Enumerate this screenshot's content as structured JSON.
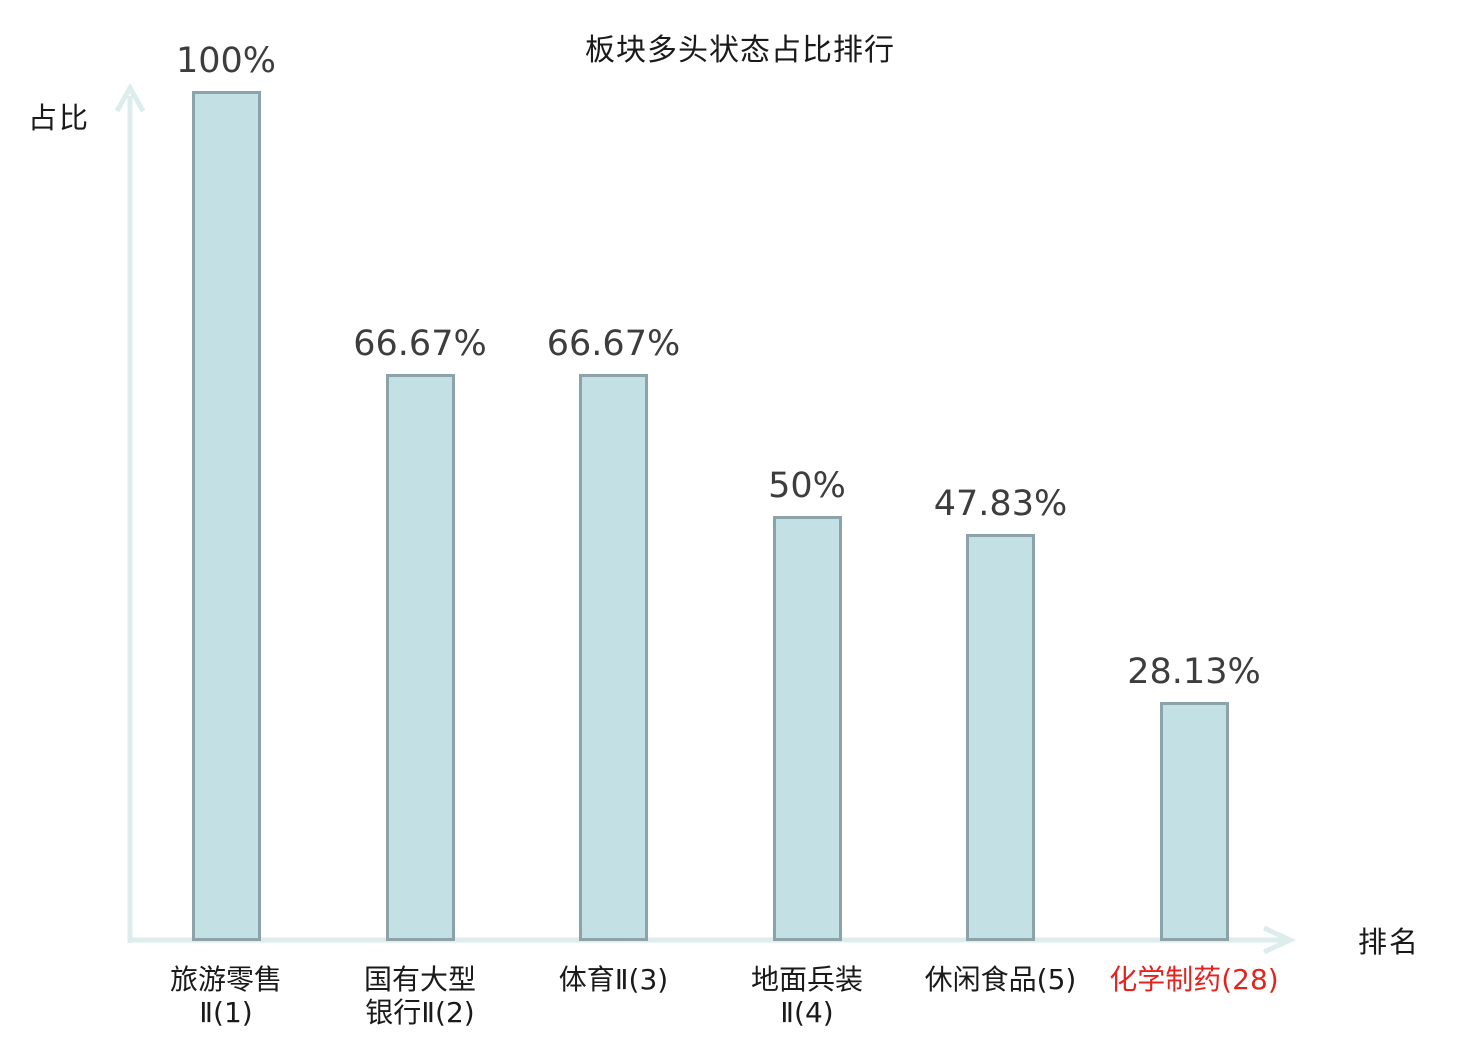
{
  "title": "板块多头状态占比排行",
  "axes": {
    "y_label": "占比",
    "x_label": "排名"
  },
  "colors": {
    "bar_fill": "#c3e0e4",
    "bar_border": "#8ca4a9",
    "axis": "#dcedeb",
    "value_label": "#3d3d3d",
    "text": "#1a1a1a",
    "highlight_red": "#e5231e"
  },
  "chart_data": {
    "type": "bar",
    "title": "板块多头状态占比排行",
    "xlabel": "排名",
    "ylabel": "占比",
    "ylim": [
      0,
      100
    ],
    "grid": false,
    "legend": "none",
    "categories": [
      "旅游零售Ⅱ(1)",
      "国有大型银行Ⅱ(2)",
      "体育Ⅱ(3)",
      "地面兵装Ⅱ(4)",
      "休闲食品(5)",
      "化学制药(28)"
    ],
    "category_display": [
      "旅游零售\nⅡ(1)",
      "国有大型\n银行Ⅱ(2)",
      "体育Ⅱ(3)",
      "地面兵装\nⅡ(4)",
      "休闲食品(5)",
      "化学制药(28)"
    ],
    "values": [
      100,
      66.67,
      66.67,
      50,
      47.83,
      28.13
    ],
    "value_labels": [
      "100%",
      "66.67%",
      "66.67%",
      "50%",
      "47.83%",
      "28.13%"
    ],
    "highlighted_category_index": 5
  }
}
